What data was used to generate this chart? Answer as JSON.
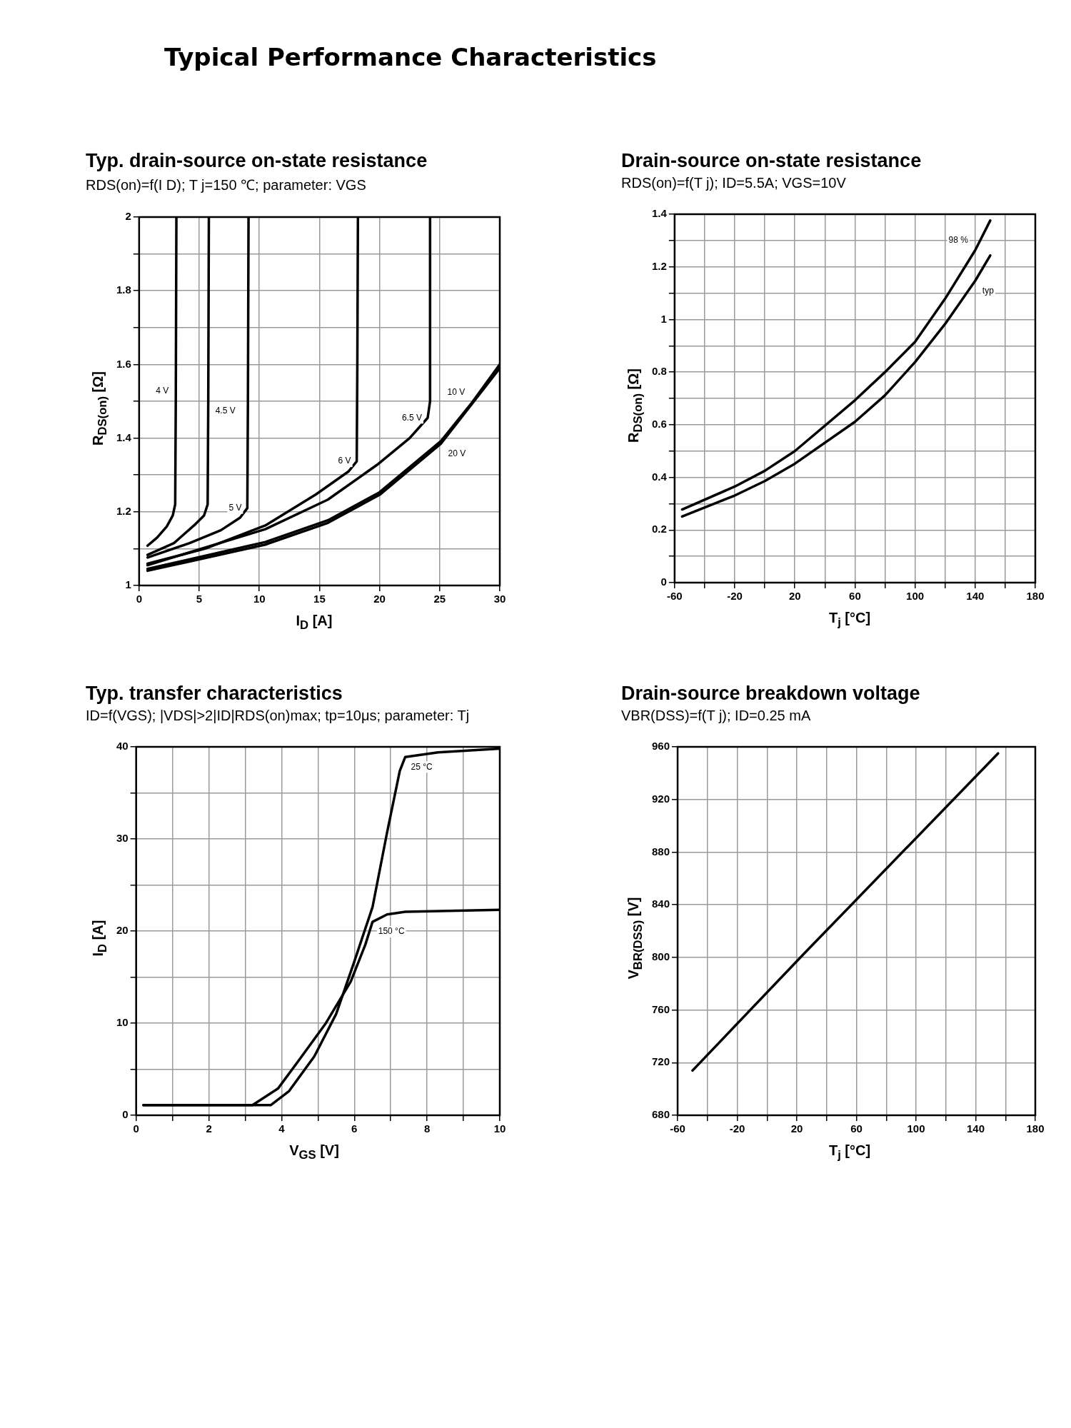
{
  "chart_data": [
    {
      "type": "line",
      "title": "Typ. drain-source on-state resistance",
      "subtitle": "RDS(on)=f(I D); T j=150 ℃; parameter: VGS",
      "xlabel": "I$_{D}$ [A]",
      "ylabel": "R$_{DS(on)}$ [Ω]",
      "annotations": [
        "Typical Performance Characteristics"
      ],
      "xlim": [
        0,
        30
      ],
      "ylim": [
        1,
        2
      ],
      "xticks": [
        0,
        5,
        10,
        15,
        20,
        25,
        30
      ],
      "yticks": [
        1,
        {
          "value": 1.1,
          "label": null
        },
        1.2,
        {
          "value": 1.3,
          "label": null
        },
        1.4,
        {
          "value": 1.5,
          "label": null
        },
        1.6,
        {
          "value": 1.7,
          "label": null
        },
        1.8,
        {
          "value": 1.9,
          "label": null
        },
        2
      ],
      "grid": true,
      "marker": "none",
      "line_style": "solid",
      "series": [
        {
          "name": "4 V",
          "color": "#000000",
          "x": [
            0.7,
            1.5,
            2.3,
            2.8,
            3.0,
            3.05,
            3.1
          ],
          "values": [
            1.108,
            1.13,
            1.16,
            1.19,
            1.22,
            1.5,
            2.0
          ]
        },
        {
          "name": "4.5 V",
          "color": "#000000",
          "x": [
            0.7,
            2.9,
            4.7,
            5.4,
            5.7,
            5.75,
            5.8
          ],
          "values": [
            1.083,
            1.115,
            1.167,
            1.19,
            1.22,
            1.5,
            2.0
          ]
        },
        {
          "name": "5 V",
          "color": "#000000",
          "x": [
            0.7,
            4.2,
            6.8,
            8.4,
            9.0,
            9.05,
            9.1
          ],
          "values": [
            1.076,
            1.115,
            1.15,
            1.184,
            1.21,
            1.5,
            2.0
          ]
        },
        {
          "name": "6 V",
          "color": "#000000",
          "x": [
            0.7,
            5.5,
            10.5,
            14.7,
            17.4,
            18.1,
            18.15,
            18.2
          ],
          "values": [
            1.059,
            1.1,
            1.163,
            1.247,
            1.309,
            1.337,
            1.6,
            2.0
          ]
        },
        {
          "name": "6.5 V",
          "color": "#000000",
          "x": [
            0.7,
            10.5,
            15.7,
            19.9,
            22.5,
            24.0,
            24.2,
            24.2
          ],
          "values": [
            1.055,
            1.153,
            1.233,
            1.33,
            1.4,
            1.455,
            1.5,
            2.0
          ]
        },
        {
          "name": "10 V",
          "color": "#000000",
          "x": [
            0.7,
            10.5,
            15.7,
            20,
            25.1,
            27.7,
            30
          ],
          "values": [
            1.045,
            1.118,
            1.177,
            1.253,
            1.392,
            1.497,
            1.6
          ]
        },
        {
          "name": "20 V",
          "color": "#000000",
          "x": [
            0.7,
            10.5,
            15.7,
            20,
            25.1,
            30
          ],
          "values": [
            1.04,
            1.111,
            1.17,
            1.246,
            1.385,
            1.59
          ]
        }
      ]
    },
    {
      "type": "line",
      "title": "Drain-source on-state resistance",
      "subtitle": "RDS(on)=f(T j); ID=5.5A; VGS=10V",
      "xlabel": "T$_{j}$ [°C]",
      "ylabel": "R$_{DS(on)}$ [Ω]",
      "xlim": [
        -60,
        180
      ],
      "ylim": [
        0,
        1.4
      ],
      "xticks": [
        -60,
        {
          "value": -40,
          "label": null
        },
        -20,
        {
          "value": 0,
          "label": null
        },
        20,
        {
          "value": 40,
          "label": null
        },
        60,
        {
          "value": 80,
          "label": null
        },
        100,
        {
          "value": 120,
          "label": null
        },
        140,
        {
          "value": 160,
          "label": null
        },
        180
      ],
      "yticks": [
        0,
        {
          "value": 0.1,
          "label": null
        },
        0.2,
        {
          "value": 0.3,
          "label": null
        },
        0.4,
        {
          "value": 0.5,
          "label": null
        },
        0.6,
        {
          "value": 0.7,
          "label": null
        },
        0.8,
        {
          "value": 0.9,
          "label": null
        },
        1,
        {
          "value": 1.1,
          "label": null
        },
        1.2,
        {
          "value": 1.3,
          "label": null
        },
        1.4
      ],
      "grid": true,
      "marker": "none",
      "line_style": "solid",
      "series": [
        {
          "name": "98 %",
          "color": "#000000",
          "x": [
            -55,
            -20,
            0,
            20,
            60,
            80,
            100,
            120,
            140,
            150
          ],
          "values": [
            0.278,
            0.365,
            0.425,
            0.5,
            0.693,
            0.8,
            0.915,
            1.079,
            1.263,
            1.376
          ]
        },
        {
          "name": "typ",
          "color": "#000000",
          "x": [
            -55,
            -20,
            0,
            20,
            60,
            80,
            100,
            120,
            140,
            150
          ],
          "values": [
            0.251,
            0.331,
            0.386,
            0.452,
            0.611,
            0.712,
            0.838,
            0.983,
            1.147,
            1.243
          ]
        }
      ]
    },
    {
      "type": "line",
      "title": "Typ. transfer characteristics",
      "subtitle": "ID=f(VGS); |VDS|>2|ID|RDS(on)max; tp=10μs; parameter: Tj",
      "xlabel": "V$_{GS}$ [V]",
      "ylabel": "I$_{D}$ [A]",
      "xlim": [
        0,
        10
      ],
      "ylim": [
        0,
        40
      ],
      "xticks": [
        0,
        {
          "value": 1,
          "label": null
        },
        2,
        {
          "value": 3,
          "label": null
        },
        4,
        {
          "value": 5,
          "label": null
        },
        6,
        {
          "value": 7,
          "label": null
        },
        8,
        {
          "value": 9,
          "label": null
        },
        10
      ],
      "yticks": [
        0,
        {
          "value": 5,
          "label": null
        },
        10,
        {
          "value": 15,
          "label": null
        },
        20,
        {
          "value": 25,
          "label": null
        },
        30,
        {
          "value": 35,
          "label": null
        },
        40
      ],
      "grid": true,
      "marker": "none",
      "line_style": "solid",
      "series": [
        {
          "name": "25 °C",
          "color": "#000000",
          "x": [
            0.2,
            3.7,
            4.2,
            4.9,
            5.5,
            6.0,
            6.5,
            6.9,
            7.25,
            7.4,
            8.3,
            10
          ],
          "values": [
            1.1,
            1.1,
            2.6,
            6.4,
            11.0,
            16.7,
            22.6,
            30.7,
            37.4,
            38.9,
            39.4,
            39.8
          ]
        },
        {
          "name": "150 °C",
          "color": "#000000",
          "x": [
            0.2,
            3.2,
            3.9,
            4.5,
            5.2,
            5.9,
            6.3,
            6.5,
            6.9,
            7.4,
            10
          ],
          "values": [
            1.1,
            1.1,
            2.9,
            6.1,
            9.9,
            14.5,
            18.5,
            21.0,
            21.8,
            22.1,
            22.3
          ]
        }
      ]
    },
    {
      "type": "line",
      "title": "Drain-source breakdown voltage",
      "subtitle": "VBR(DSS)=f(T j); ID=0.25 mA",
      "xlabel": "T$_{j}$ [°C]",
      "ylabel": "V$_{BR(DSS)}$ [V]",
      "xlim": [
        -60,
        180
      ],
      "ylim": [
        680,
        960
      ],
      "xticks": [
        -60,
        {
          "value": -40,
          "label": null
        },
        -20,
        {
          "value": 0,
          "label": null
        },
        20,
        {
          "value": 40,
          "label": null
        },
        60,
        {
          "value": 80,
          "label": null
        },
        100,
        {
          "value": 120,
          "label": null
        },
        140,
        {
          "value": 160,
          "label": null
        },
        180
      ],
      "yticks": [
        680,
        720,
        760,
        800,
        840,
        880,
        920,
        960
      ],
      "grid": true,
      "marker": "none",
      "line_style": "solid",
      "series": [
        {
          "color": "#000000",
          "x": [
            -50,
            25,
            155
          ],
          "values": [
            714,
            803,
            955
          ]
        }
      ]
    }
  ]
}
